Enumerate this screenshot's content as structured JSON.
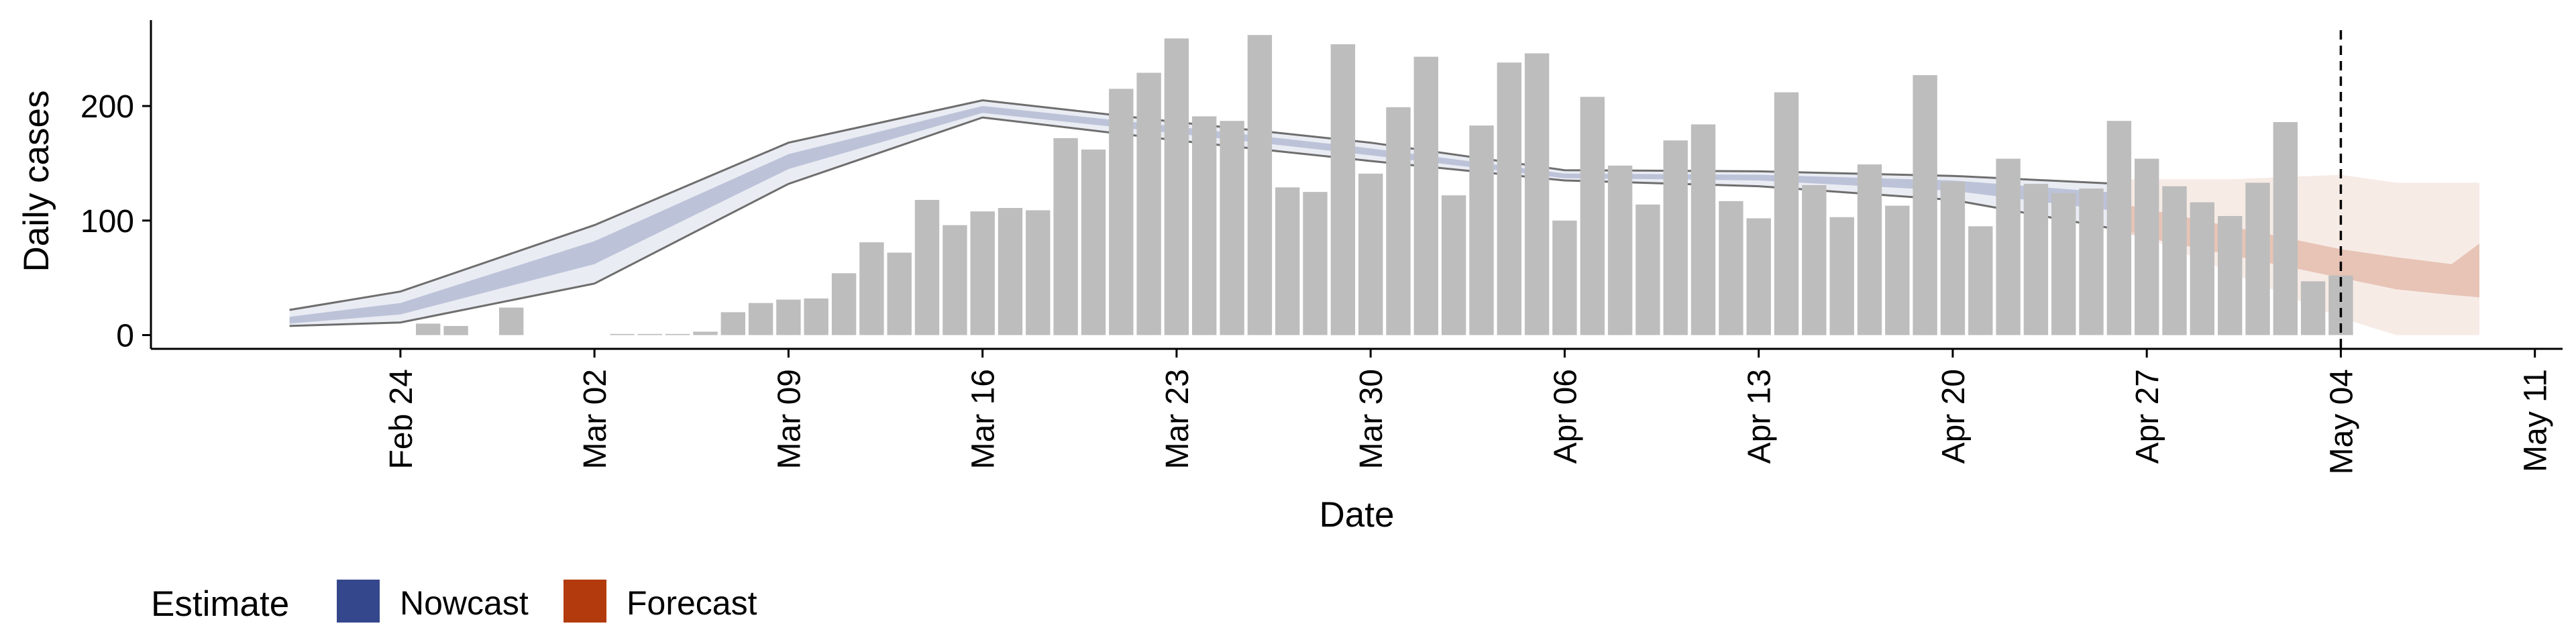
{
  "chart_data": {
    "type": "bar",
    "title": "",
    "xlabel": "Date",
    "ylabel": "Daily cases",
    "x_axis": {
      "type": "date",
      "range": [
        "2020-02-15",
        "2020-05-12"
      ],
      "ticks": [
        "2020-02-24",
        "2020-03-02",
        "2020-03-09",
        "2020-03-16",
        "2020-03-23",
        "2020-03-30",
        "2020-04-06",
        "2020-04-13",
        "2020-04-20",
        "2020-04-27",
        "2020-05-04",
        "2020-05-11"
      ],
      "tick_labels": [
        "Feb 24",
        "Mar 02",
        "Mar 09",
        "Mar 16",
        "Mar 23",
        "Mar 30",
        "Apr 06",
        "Apr 13",
        "Apr 20",
        "Apr 27",
        "May 04",
        "May 11"
      ]
    },
    "y_axis": {
      "range": [
        -12,
        275
      ],
      "ticks": [
        0,
        100,
        200
      ],
      "tick_labels": [
        "0",
        "100",
        "200"
      ]
    },
    "grid": false,
    "reference_line": {
      "date": "2020-05-04",
      "style": "dashed"
    },
    "bars": {
      "color": "#bdbdbd",
      "data": [
        [
          "2020-02-25",
          10
        ],
        [
          "2020-02-26",
          8
        ],
        [
          "2020-02-28",
          24
        ],
        [
          "2020-03-03",
          1
        ],
        [
          "2020-03-04",
          1
        ],
        [
          "2020-03-05",
          1
        ],
        [
          "2020-03-06",
          3
        ],
        [
          "2020-03-07",
          20
        ],
        [
          "2020-03-08",
          28
        ],
        [
          "2020-03-09",
          31
        ],
        [
          "2020-03-10",
          32
        ],
        [
          "2020-03-11",
          54
        ],
        [
          "2020-03-12",
          81
        ],
        [
          "2020-03-13",
          72
        ],
        [
          "2020-03-14",
          118
        ],
        [
          "2020-03-15",
          96
        ],
        [
          "2020-03-16",
          108
        ],
        [
          "2020-03-17",
          111
        ],
        [
          "2020-03-18",
          109
        ],
        [
          "2020-03-19",
          172
        ],
        [
          "2020-03-20",
          162
        ],
        [
          "2020-03-21",
          215
        ],
        [
          "2020-03-22",
          229
        ],
        [
          "2020-03-23",
          259
        ],
        [
          "2020-03-24",
          191
        ],
        [
          "2020-03-25",
          187
        ],
        [
          "2020-03-26",
          262
        ],
        [
          "2020-03-27",
          129
        ],
        [
          "2020-03-28",
          125
        ],
        [
          "2020-03-29",
          254
        ],
        [
          "2020-03-30",
          141
        ],
        [
          "2020-03-31",
          199
        ],
        [
          "2020-04-01",
          243
        ],
        [
          "2020-04-02",
          122
        ],
        [
          "2020-04-03",
          183
        ],
        [
          "2020-04-04",
          238
        ],
        [
          "2020-04-05",
          246
        ],
        [
          "2020-04-06",
          100
        ],
        [
          "2020-04-07",
          208
        ],
        [
          "2020-04-08",
          148
        ],
        [
          "2020-04-09",
          114
        ],
        [
          "2020-04-10",
          170
        ],
        [
          "2020-04-11",
          184
        ],
        [
          "2020-04-12",
          117
        ],
        [
          "2020-04-13",
          102
        ],
        [
          "2020-04-14",
          212
        ],
        [
          "2020-04-15",
          131
        ],
        [
          "2020-04-16",
          103
        ],
        [
          "2020-04-17",
          149
        ],
        [
          "2020-04-18",
          113
        ],
        [
          "2020-04-19",
          227
        ],
        [
          "2020-04-20",
          134
        ],
        [
          "2020-04-21",
          95
        ],
        [
          "2020-04-22",
          154
        ],
        [
          "2020-04-23",
          132
        ],
        [
          "2020-04-24",
          124
        ],
        [
          "2020-04-25",
          128
        ],
        [
          "2020-04-26",
          187
        ],
        [
          "2020-04-27",
          154
        ],
        [
          "2020-04-28",
          130
        ],
        [
          "2020-04-29",
          116
        ],
        [
          "2020-04-30",
          104
        ],
        [
          "2020-05-01",
          133
        ],
        [
          "2020-05-02",
          186
        ],
        [
          "2020-05-03",
          47
        ],
        [
          "2020-05-04",
          52
        ]
      ]
    },
    "series": [
      {
        "name": "Nowcast",
        "color": "#35478c",
        "bands": [
          {
            "level": "outer",
            "opacity": 0.1,
            "x": [
              "2020-02-20",
              "2020-02-24",
              "2020-03-02",
              "2020-03-09",
              "2020-03-16",
              "2020-03-23",
              "2020-03-30",
              "2020-04-06",
              "2020-04-13",
              "2020-04-20",
              "2020-04-26"
            ],
            "lower": [
              8,
              11,
              45,
              132,
              190,
              170,
              152,
              135,
              130,
              118,
              92
            ],
            "upper": [
              22,
              38,
              96,
              168,
              205,
              186,
              168,
              144,
              143,
              139,
              132
            ]
          },
          {
            "level": "inner",
            "opacity": 0.25,
            "x": [
              "2020-02-20",
              "2020-02-24",
              "2020-03-02",
              "2020-03-09",
              "2020-03-16",
              "2020-03-23",
              "2020-03-30",
              "2020-04-06",
              "2020-04-13",
              "2020-04-20",
              "2020-04-26"
            ],
            "lower": [
              10,
              18,
              62,
              145,
              194,
              176,
              157,
              137,
              135,
              126,
              108
            ],
            "upper": [
              16,
              28,
              82,
              158,
              200,
              182,
              163,
              141,
              140,
              135,
              124
            ]
          }
        ]
      },
      {
        "name": "Forecast",
        "color": "#b33a0c",
        "bands": [
          {
            "level": "outer",
            "opacity": 0.1,
            "x": [
              "2020-04-26",
              "2020-04-30",
              "2020-05-04",
              "2020-05-06",
              "2020-05-09"
            ],
            "lower": [
              95,
              55,
              15,
              0,
              0
            ],
            "upper": [
              136,
              136,
              140,
              133,
              133
            ]
          },
          {
            "level": "inner",
            "opacity": 0.22,
            "x": [
              "2020-04-26",
              "2020-04-28",
              "2020-04-30",
              "2020-05-02",
              "2020-05-04",
              "2020-05-06",
              "2020-05-08",
              "2020-05-09"
            ],
            "lower": [
              90,
              80,
              70,
              60,
              50,
              40,
              35,
              33
            ],
            "upper": [
              115,
              105,
              95,
              85,
              75,
              68,
              62,
              80
            ]
          }
        ]
      }
    ],
    "legend": {
      "title": "Estimate",
      "placement": "bottom-left",
      "entries": [
        {
          "label": "Nowcast",
          "color": "#35478c"
        },
        {
          "label": "Forecast",
          "color": "#b33a0c"
        }
      ]
    }
  }
}
